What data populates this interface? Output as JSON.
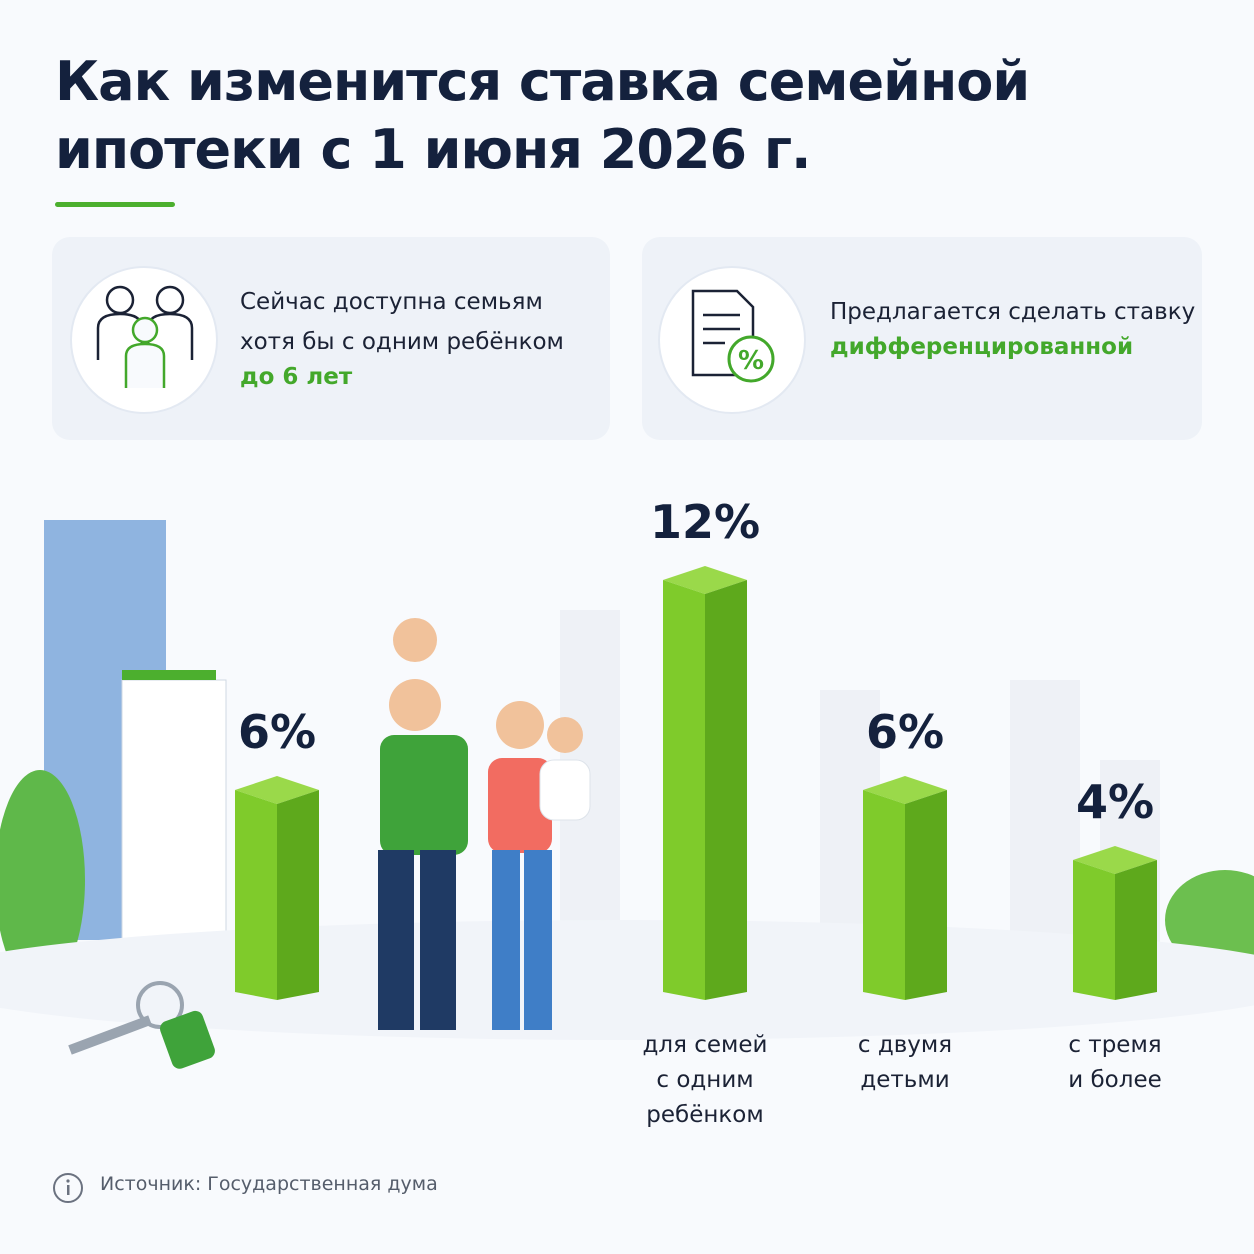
{
  "header": {
    "title": "Как изменится ставка семейной\nипотеки с 1 июня 2026 г."
  },
  "cards": [
    {
      "text": "Сейчас доступна семьям\nхотя бы с одним ребёнком",
      "highlight": "до 6 лет"
    },
    {
      "text": "Предлагается сделать ставку",
      "highlight": "дифференцированной"
    }
  ],
  "chart_data": {
    "type": "bar",
    "categories": [
      null,
      "для семей\nс одним\nребёнком",
      "с двумя\nдетьми",
      "с тремя\nи более"
    ],
    "values": [
      6,
      12,
      6,
      4
    ],
    "value_labels": [
      "6%",
      "12%",
      "6%",
      "4%"
    ],
    "color": "#7fcb2b"
  },
  "footer": {
    "source": "Источник: Государственная дума"
  }
}
